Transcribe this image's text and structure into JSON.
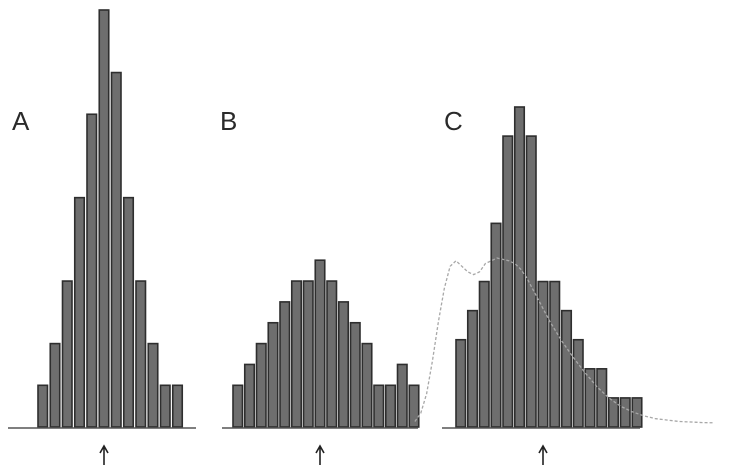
{
  "figure": {
    "bar_fill": "#6e6e6e",
    "bar_edge": "#2e2e2e",
    "curve_color": "#a8a8a8",
    "grid": false,
    "axis_ticks": false
  },
  "chart_data": [
    {
      "type": "bar",
      "panel_label": "A",
      "values": [
        2,
        4,
        7,
        11,
        15,
        20,
        17,
        11,
        7,
        4,
        2,
        2
      ],
      "ylim": [
        0,
        20
      ],
      "marker_bin": 5,
      "marker": "arrow"
    },
    {
      "type": "bar",
      "panel_label": "B",
      "values": [
        2,
        3,
        4,
        5,
        6,
        7,
        7,
        8,
        7,
        6,
        5,
        4,
        2,
        2,
        3,
        2
      ],
      "ylim": [
        0,
        20
      ],
      "marker_bin": 7,
      "marker": "arrow"
    },
    {
      "type": "bar",
      "panel_label": "C",
      "values": [
        3,
        4,
        5,
        7,
        10,
        11,
        10,
        5,
        5,
        4,
        3,
        2,
        2,
        1,
        1,
        1
      ],
      "ylim": [
        0,
        11
      ],
      "marker_bin": 7,
      "marker": "arrow",
      "fitted_curve": {
        "label": "",
        "x": [
          -3.5,
          -3,
          -2.5,
          -2,
          -1.5,
          -1,
          -0.5,
          0,
          0.5,
          1,
          1.5,
          2,
          2.5,
          3,
          3.5,
          4,
          4.5,
          5,
          5.5,
          6,
          6.5,
          7,
          7.5,
          8,
          9,
          10,
          11,
          12,
          13,
          14,
          15,
          16,
          17,
          18,
          19,
          20,
          21,
          22
        ],
        "y": [
          0.2,
          0.5,
          1.2,
          2.4,
          3.8,
          5.0,
          5.8,
          6.0,
          5.8,
          5.6,
          5.5,
          5.6,
          5.9,
          6.0,
          6.1,
          6.05,
          6.0,
          5.9,
          5.7,
          5.4,
          5.0,
          4.6,
          4.2,
          3.8,
          3.1,
          2.5,
          1.95,
          1.45,
          1.05,
          0.75,
          0.55,
          0.4,
          0.3,
          0.25,
          0.2,
          0.18,
          0.16,
          0.15
        ]
      }
    }
  ]
}
